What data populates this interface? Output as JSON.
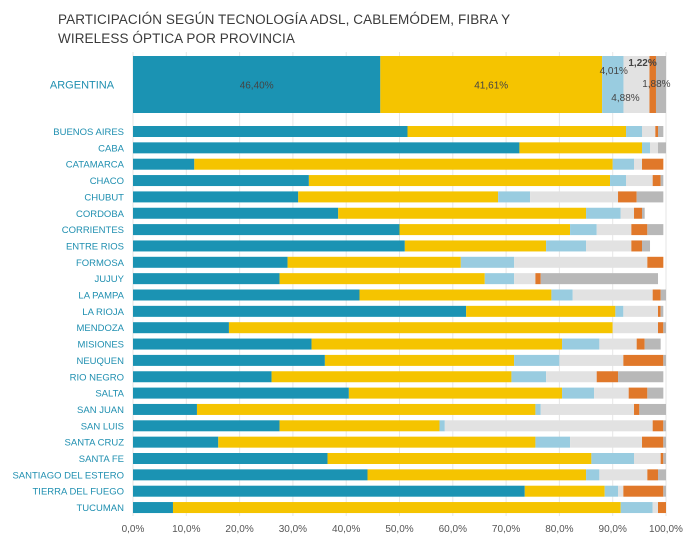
{
  "title_lines": [
    "PARTICIPACIÓN SEGÚN TECNOLOGÍA ADSL, CABLEMÓDEM, FIBRA Y",
    "WIRELESS ÓPTICA POR PROVINCIA"
  ],
  "colors": {
    "adsl": "#1b93b3",
    "cable": "#f5c400",
    "fibra": "#99cce0",
    "wireless": "#e2e2e2",
    "otros": "#e0782a",
    "resto": "#b8b8b8",
    "label": "#1f8fb0"
  },
  "chart_data": {
    "type": "bar",
    "orientation": "horizontal",
    "stacked": true,
    "percent": true,
    "xlim": [
      0,
      100
    ],
    "xticks": [
      "0,0%",
      "10,0%",
      "20,0%",
      "30,0%",
      "40,0%",
      "50,0%",
      "60,0%",
      "70,0%",
      "80,0%",
      "90,0%",
      "100,0%"
    ],
    "national": {
      "label": "ARGENTINA",
      "values": [
        46.4,
        41.61,
        4.01,
        4.88,
        1.22,
        1.88
      ],
      "value_labels": [
        "46,40%",
        "41,61%",
        "4,01%",
        "4,88%",
        "1,22%",
        "1,88%"
      ]
    },
    "categories": [
      "BUENOS AIRES",
      "CABA",
      "CATAMARCA",
      "CHACO",
      "CHUBUT",
      "CORDOBA",
      "CORRIENTES",
      "ENTRE RIOS",
      "FORMOSA",
      "JUJUY",
      "LA PAMPA",
      "LA RIOJA",
      "MENDOZA",
      "MISIONES",
      "NEUQUEN",
      "RIO NEGRO",
      "SALTA",
      "SAN JUAN",
      "SAN LUIS",
      "SANTA CRUZ",
      "SANTA FE",
      "SANTIAGO DEL ESTERO",
      "TIERRA DEL FUEGO",
      "TUCUMAN"
    ],
    "series": [
      {
        "values": [
          51.5,
          72.5,
          11.5,
          33.0,
          31.0,
          38.5,
          50.0,
          51.0,
          29.0,
          27.5,
          42.5,
          62.5,
          18.0,
          33.5,
          36.0,
          26.0,
          40.5,
          12.0,
          27.5,
          16.0,
          36.5,
          44.0,
          73.5,
          7.5
        ]
      },
      {
        "values": [
          41.0,
          23.0,
          78.5,
          56.5,
          37.5,
          46.5,
          32.0,
          26.5,
          32.5,
          38.5,
          36.0,
          28.0,
          72.0,
          47.0,
          35.5,
          45.0,
          40.0,
          63.5,
          30.0,
          59.5,
          49.5,
          41.0,
          15.0,
          84.0
        ]
      },
      {
        "values": [
          3.0,
          1.5,
          4.0,
          3.0,
          6.0,
          6.5,
          5.0,
          7.5,
          10.0,
          5.5,
          4.0,
          1.5,
          0.0,
          7.0,
          8.5,
          6.5,
          6.0,
          1.0,
          1.0,
          6.5,
          8.0,
          2.5,
          2.5,
          6.0
        ]
      },
      {
        "values": [
          2.5,
          1.5,
          1.5,
          5.0,
          16.5,
          2.5,
          6.5,
          8.5,
          25.0,
          4.0,
          15.0,
          6.5,
          8.5,
          7.0,
          12.0,
          9.5,
          6.5,
          17.5,
          39.0,
          13.5,
          5.0,
          9.0,
          1.0,
          1.0
        ]
      },
      {
        "values": [
          0.5,
          0.0,
          4.0,
          1.5,
          3.5,
          1.5,
          3.0,
          2.0,
          3.0,
          1.0,
          1.5,
          0.5,
          1.0,
          1.5,
          7.5,
          4.0,
          3.5,
          1.0,
          2.0,
          4.0,
          0.5,
          2.0,
          7.5,
          1.5
        ]
      },
      {
        "values": [
          1.0,
          1.5,
          0.0,
          0.5,
          5.0,
          0.5,
          3.0,
          1.5,
          0.0,
          22.0,
          1.0,
          0.5,
          0.5,
          3.0,
          0.5,
          8.5,
          3.0,
          5.0,
          0.5,
          0.5,
          0.5,
          1.5,
          0.5,
          0.0
        ]
      }
    ]
  }
}
